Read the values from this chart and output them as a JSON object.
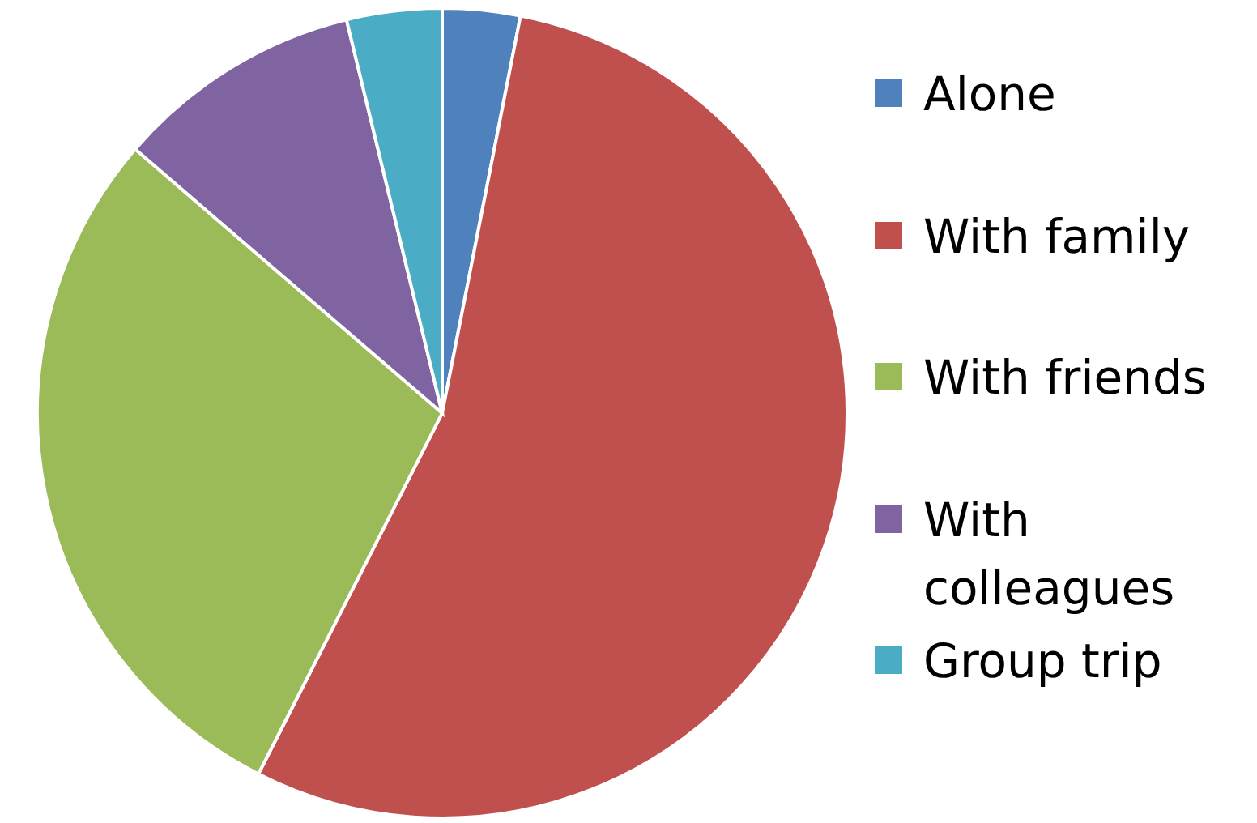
{
  "chart_data": {
    "type": "pie",
    "categories": [
      "Alone",
      "With family",
      "With friends",
      "With colleagues",
      "Group trip"
    ],
    "values": [
      3.1,
      54.4,
      28.8,
      9.9,
      3.8
    ],
    "colors": [
      "#4f81bd",
      "#c0504d",
      "#9bbb59",
      "#8064a2",
      "#4bacc6"
    ],
    "legend": "right"
  }
}
